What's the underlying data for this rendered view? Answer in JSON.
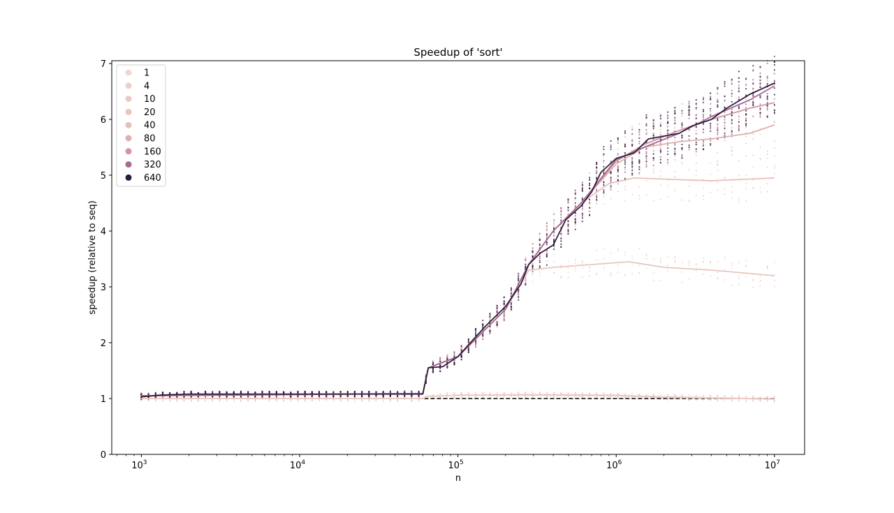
{
  "chart_data": {
    "type": "line",
    "title": "Speedup of 'sort'",
    "xlabel": "n",
    "ylabel": "speedup (relative to seq)",
    "xscale": "log",
    "xlim": [
      650,
      15500000
    ],
    "ylim": [
      0,
      7.05
    ],
    "x_ticks": [
      {
        "value": 1000,
        "base": "10",
        "exp": "3"
      },
      {
        "value": 10000,
        "base": "10",
        "exp": "4"
      },
      {
        "value": 100000,
        "base": "10",
        "exp": "5"
      },
      {
        "value": 1000000,
        "base": "10",
        "exp": "6"
      },
      {
        "value": 10000000,
        "base": "10",
        "exp": "7"
      }
    ],
    "y_ticks": [
      0,
      1,
      2,
      3,
      4,
      5,
      6,
      7
    ],
    "grid": false,
    "legend_position": "top-left",
    "baseline": {
      "y": 1,
      "style": "dashed",
      "color": "#000000"
    },
    "series": [
      {
        "name": "1",
        "color": "#f0d8d1",
        "points": [
          [
            1000,
            1.0
          ],
          [
            10000,
            1.0
          ],
          [
            60000,
            1.0
          ],
          [
            65000,
            1.04
          ],
          [
            100000,
            1.06
          ],
          [
            300000,
            1.07
          ],
          [
            1000000,
            1.05
          ],
          [
            2000000,
            1.03
          ],
          [
            10000000,
            0.99
          ]
        ]
      },
      {
        "name": "4",
        "color": "#edcfc8",
        "points": [
          [
            1000,
            1.0
          ],
          [
            10000,
            1.0
          ],
          [
            60000,
            1.0
          ],
          [
            65000,
            1.04
          ],
          [
            100000,
            1.06
          ],
          [
            300000,
            1.06
          ],
          [
            1000000,
            1.05
          ],
          [
            2000000,
            1.02
          ],
          [
            10000000,
            0.99
          ]
        ]
      },
      {
        "name": "10",
        "color": "#ebcac3",
        "points": [
          [
            1000,
            1.0
          ],
          [
            10000,
            1.0
          ],
          [
            60000,
            1.0
          ],
          [
            65000,
            1.04
          ],
          [
            100000,
            1.06
          ],
          [
            300000,
            1.07
          ],
          [
            1000000,
            1.06
          ],
          [
            2000000,
            1.03
          ],
          [
            10000000,
            0.99
          ]
        ]
      },
      {
        "name": "20",
        "color": "#e8c5be",
        "points": [
          [
            1000,
            1.05
          ],
          [
            60000,
            1.09
          ],
          [
            65000,
            1.55
          ],
          [
            100000,
            1.75
          ],
          [
            200000,
            2.6
          ],
          [
            280000,
            3.3
          ],
          [
            400000,
            3.35
          ],
          [
            700000,
            3.4
          ],
          [
            1200000,
            3.45
          ],
          [
            2000000,
            3.35
          ],
          [
            4000000,
            3.3
          ],
          [
            10000000,
            3.2
          ]
        ]
      },
      {
        "name": "40",
        "color": "#e6c0ba",
        "points": [
          [
            1000,
            1.05
          ],
          [
            60000,
            1.09
          ],
          [
            65000,
            1.55
          ],
          [
            100000,
            1.75
          ],
          [
            200000,
            2.6
          ],
          [
            280000,
            3.4
          ],
          [
            400000,
            4.0
          ],
          [
            600000,
            4.5
          ],
          [
            900000,
            4.85
          ],
          [
            1300000,
            4.95
          ],
          [
            2000000,
            4.93
          ],
          [
            4000000,
            4.9
          ],
          [
            10000000,
            4.95
          ]
        ]
      },
      {
        "name": "80",
        "color": "#deb0ad",
        "points": [
          [
            1000,
            1.05
          ],
          [
            60000,
            1.09
          ],
          [
            65000,
            1.55
          ],
          [
            100000,
            1.75
          ],
          [
            200000,
            2.6
          ],
          [
            280000,
            3.4
          ],
          [
            400000,
            4.0
          ],
          [
            600000,
            4.5
          ],
          [
            1000000,
            5.2
          ],
          [
            1500000,
            5.5
          ],
          [
            2500000,
            5.6
          ],
          [
            4000000,
            5.65
          ],
          [
            7000000,
            5.75
          ],
          [
            10000000,
            5.9
          ]
        ]
      },
      {
        "name": "160",
        "color": "#d196a0",
        "points": [
          [
            1000,
            1.05
          ],
          [
            60000,
            1.09
          ],
          [
            65000,
            1.55
          ],
          [
            100000,
            1.75
          ],
          [
            200000,
            2.6
          ],
          [
            280000,
            3.4
          ],
          [
            400000,
            4.0
          ],
          [
            600000,
            4.5
          ],
          [
            1000000,
            5.25
          ],
          [
            1500000,
            5.55
          ],
          [
            2500000,
            5.8
          ],
          [
            4000000,
            6.0
          ],
          [
            7000000,
            6.2
          ],
          [
            10000000,
            6.3
          ]
        ]
      },
      {
        "name": "320",
        "color": "#a6698f",
        "points": [
          [
            1000,
            1.05
          ],
          [
            60000,
            1.09
          ],
          [
            65000,
            1.55
          ],
          [
            100000,
            1.75
          ],
          [
            200000,
            2.6
          ],
          [
            280000,
            3.4
          ],
          [
            400000,
            4.0
          ],
          [
            600000,
            4.5
          ],
          [
            1000000,
            5.28
          ],
          [
            1500000,
            5.5
          ],
          [
            2500000,
            5.75
          ],
          [
            4000000,
            6.05
          ],
          [
            7000000,
            6.35
          ],
          [
            10000000,
            6.6
          ]
        ]
      },
      {
        "name": "640",
        "color": "#2d1b3d",
        "points": [
          [
            1000,
            1.03
          ],
          [
            1300,
            1.06
          ],
          [
            2000,
            1.08
          ],
          [
            10000,
            1.08
          ],
          [
            60000,
            1.08
          ],
          [
            65000,
            1.55
          ],
          [
            80000,
            1.57
          ],
          [
            100000,
            1.75
          ],
          [
            120000,
            2.0
          ],
          [
            150000,
            2.3
          ],
          [
            200000,
            2.65
          ],
          [
            250000,
            3.05
          ],
          [
            280000,
            3.4
          ],
          [
            330000,
            3.6
          ],
          [
            400000,
            3.75
          ],
          [
            480000,
            4.2
          ],
          [
            600000,
            4.45
          ],
          [
            700000,
            4.7
          ],
          [
            800000,
            5.05
          ],
          [
            1000000,
            5.3
          ],
          [
            1300000,
            5.4
          ],
          [
            1600000,
            5.65
          ],
          [
            2000000,
            5.7
          ],
          [
            2500000,
            5.75
          ],
          [
            3000000,
            5.88
          ],
          [
            4000000,
            6.0
          ],
          [
            5000000,
            6.2
          ],
          [
            7000000,
            6.45
          ],
          [
            10000000,
            6.65
          ]
        ]
      }
    ]
  }
}
